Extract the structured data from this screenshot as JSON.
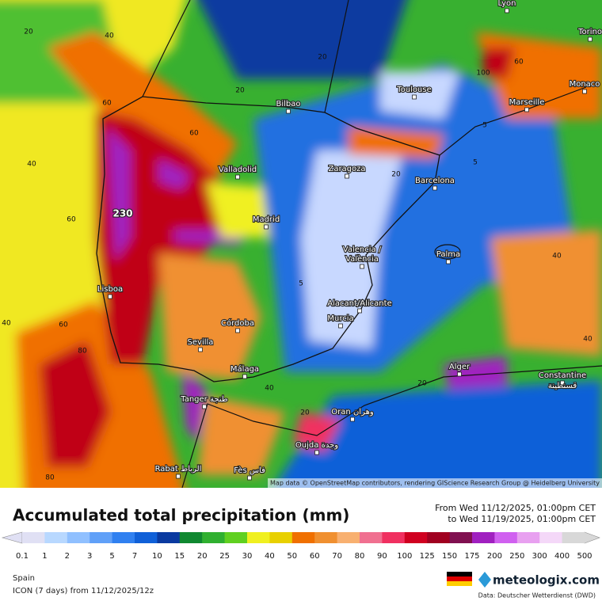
{
  "map": {
    "attribution": "Map data © OpenStreetMap contributors, rendering GIScience Research Group @ Heidelberg University",
    "cities": [
      "Lyon",
      "Torino",
      "Monaco",
      "Marseille",
      "Toulouse",
      "Bilbao",
      "Valladolid",
      "Zaragoza",
      "Barcelona",
      "Madrid",
      "Valencia /",
      "València",
      "Palma",
      "Lisboa",
      "Alacant/Alicante",
      "Murcia",
      "Córdoba",
      "Sevilla",
      "Málaga",
      "Alger",
      "Constantine",
      "قسنطينة",
      "Tanger طنجة",
      "Oran وهران",
      "Oujda وجدة",
      "Rabat الرباط",
      "Fès فاس"
    ],
    "contour_labels": [
      "20",
      "40",
      "60",
      "40",
      "60",
      "40",
      "60",
      "80",
      "40",
      "40",
      "80",
      "5",
      "5",
      "20",
      "20",
      "60",
      "20",
      "20",
      "230",
      "100",
      "5",
      "20",
      "40",
      "60"
    ]
  },
  "legend": {
    "title": "Accumulated total precipitation (mm)",
    "from": "From Wed 11/12/2025, 01:00pm CET",
    "to": "to Wed 11/19/2025, 01:00pm CET",
    "labels": [
      "0.1",
      "1",
      "2",
      "3",
      "5",
      "7",
      "10",
      "15",
      "20",
      "25",
      "30",
      "40",
      "50",
      "60",
      "70",
      "80",
      "90",
      "100",
      "125",
      "150",
      "175",
      "200",
      "250",
      "300",
      "400",
      "500"
    ],
    "colors": [
      "#e0e0f4",
      "#b8d8ff",
      "#90c0ff",
      "#60a0f8",
      "#3080f0",
      "#1060d8",
      "#0a3aa0",
      "#108830",
      "#30b030",
      "#60d020",
      "#f0f020",
      "#e8d000",
      "#f07000",
      "#f09030",
      "#f8b070",
      "#f07090",
      "#f03060",
      "#d00020",
      "#a00020",
      "#801050",
      "#a020c0",
      "#d060f0",
      "#e8a0f0",
      "#f4d8f8",
      "#d8d8d8"
    ]
  },
  "footer": {
    "region": "Spain",
    "model": "ICON (7 days)  from  11/12/2025/12z",
    "brand": "meteologix.com",
    "source": "Data: Deutscher Wetterdienst (DWD)"
  }
}
